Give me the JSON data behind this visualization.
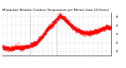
{
  "title": "Milwaukee Weather Outdoor Temperature per Minute (Last 24 Hours)",
  "line_color": "#ff0000",
  "background_color": "#ffffff",
  "grid_color": "#cccccc",
  "vline_color": "#999999",
  "ylim": [
    5,
    55
  ],
  "yticks": [
    10,
    20,
    30,
    40,
    50
  ],
  "num_points": 1440,
  "vline_positions": [
    360,
    720
  ],
  "title_fontsize": 2.8,
  "tick_fontsize": 2.2,
  "temp_x": [
    0,
    50,
    100,
    150,
    200,
    250,
    300,
    350,
    400,
    450,
    500,
    550,
    600,
    650,
    700,
    740,
    760,
    780,
    800,
    850,
    900,
    950,
    1000,
    1050,
    1100,
    1150,
    1200,
    1250,
    1300,
    1350,
    1380,
    1420,
    1439
  ],
  "temp_y": [
    15,
    14,
    13,
    14,
    15,
    14,
    15,
    16,
    18,
    20,
    25,
    30,
    36,
    40,
    45,
    49,
    51,
    50,
    49,
    45,
    40,
    37,
    34,
    32,
    31,
    31,
    32,
    33,
    35,
    37,
    38,
    37,
    37
  ]
}
